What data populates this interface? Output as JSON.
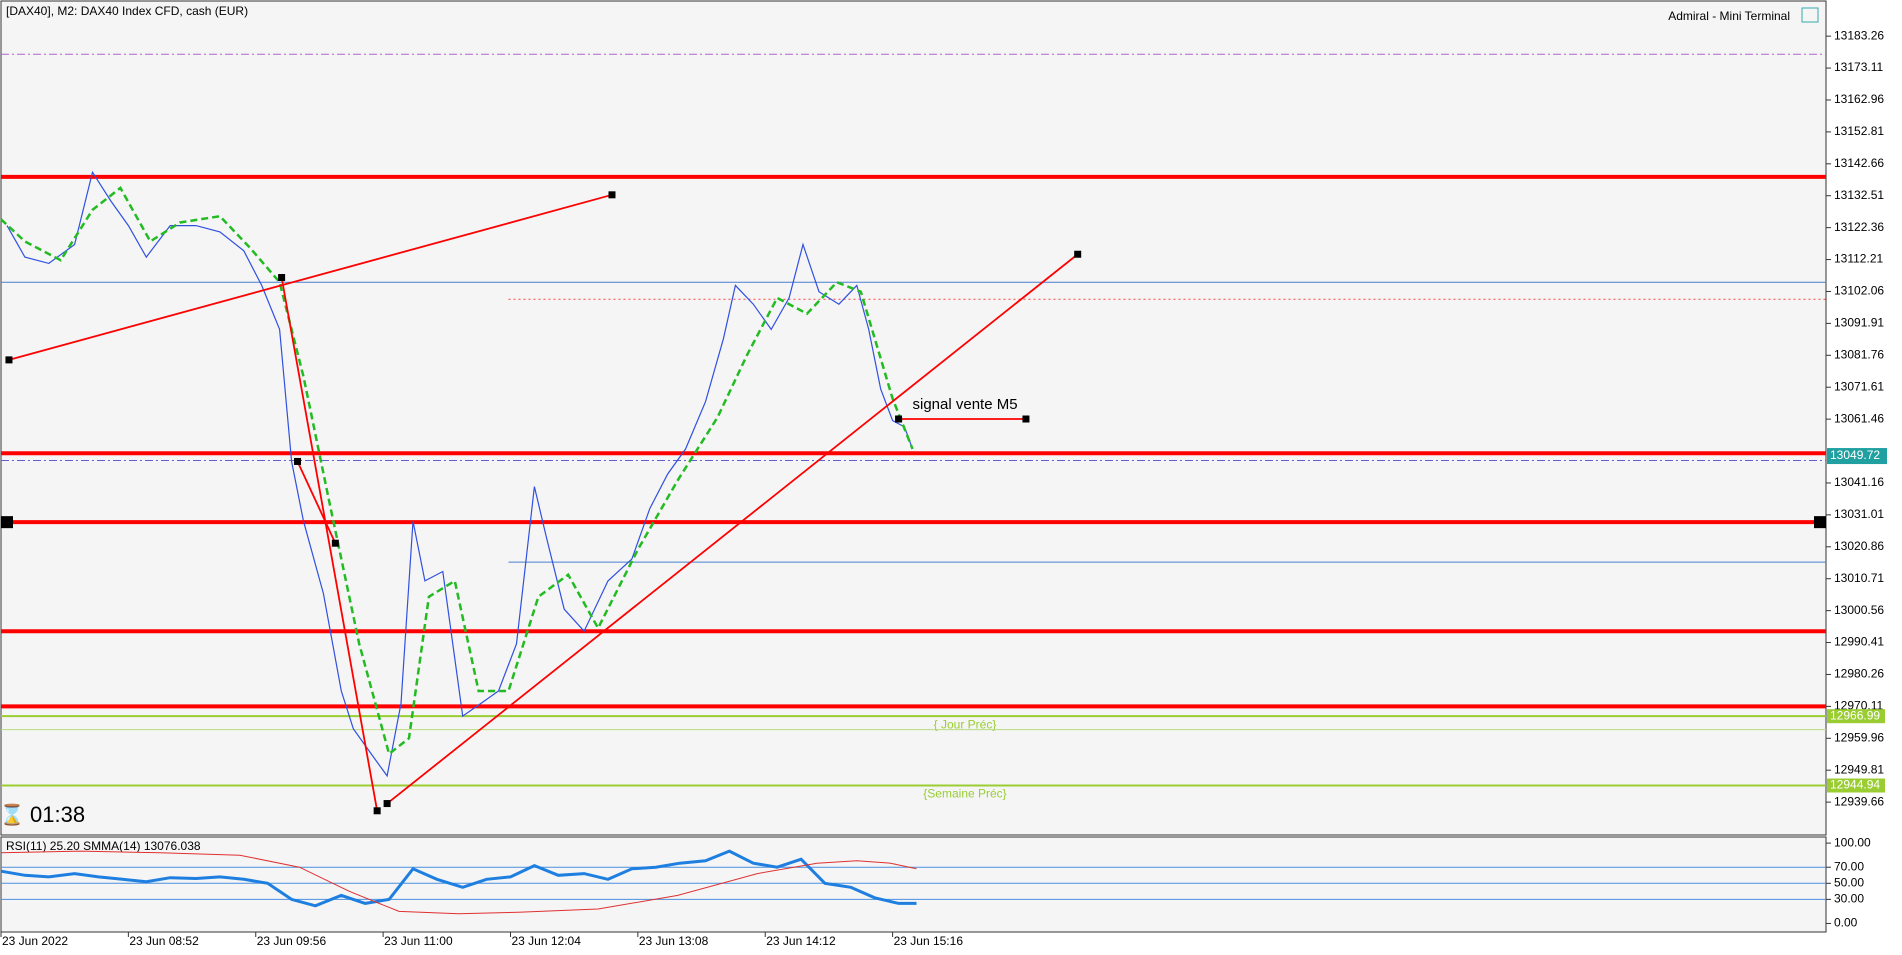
{
  "chart_data": [
    {
      "type": "line",
      "title": "[DAX40], M2:  DAX40 Index CFD, cash (EUR)",
      "terminal": "Admiral - Mini Terminal",
      "timer": "01:38",
      "xlim": [
        0,
        917
      ],
      "xticks": [
        {
          "value": 0,
          "label": "23 Jun 2022"
        },
        {
          "value": 64,
          "label": "23 Jun 08:52"
        },
        {
          "value": 128,
          "label": "23 Jun 09:56"
        },
        {
          "value": 192,
          "label": "23 Jun 11:00"
        },
        {
          "value": 256,
          "label": "23 Jun 12:04"
        },
        {
          "value": 320,
          "label": "23 Jun 13:08"
        },
        {
          "value": 384,
          "label": "23 Jun 14:12"
        },
        {
          "value": 448,
          "label": "23 Jun 15:16"
        }
      ],
      "ylim": [
        12929.2,
        13194.44
      ],
      "yticks": [
        13183.26,
        13173.11,
        13162.96,
        13152.81,
        13142.66,
        13132.51,
        13122.36,
        13112.21,
        13102.06,
        13091.91,
        13081.76,
        13071.61,
        13061.46,
        13041.16,
        13031.01,
        13020.86,
        13010.71,
        13000.56,
        12990.41,
        12980.26,
        12970.11,
        12959.96,
        12949.81,
        12939.66
      ],
      "series": [
        {
          "color": "#3050e0",
          "x": [
            3,
            12,
            24,
            37,
            46,
            55,
            64,
            73,
            85,
            98,
            110,
            122,
            131,
            140,
            146,
            152,
            162,
            171,
            177,
            186,
            194,
            201,
            207,
            213,
            222,
            232,
            241,
            250,
            259,
            268,
            274,
            283,
            293,
            305,
            317,
            326,
            335,
            344,
            354,
            363,
            369,
            378,
            387,
            396,
            403,
            411,
            421,
            430,
            436,
            442,
            448,
            454,
            458
          ],
          "values": [
            13123,
            13113,
            13111,
            13117,
            13140,
            13131,
            13123,
            13113,
            13123,
            13123,
            13121,
            13115,
            13104,
            13090,
            13048,
            13029,
            13006,
            12975,
            12963,
            12955,
            12948,
            12971,
            13029,
            13010,
            13013,
            12967,
            12971,
            12975,
            12990,
            13040,
            13024,
            13001,
            12994,
            13010,
            13017,
            13033,
            13044,
            13052,
            13067,
            13087,
            13104,
            13098,
            13090,
            13100,
            13117,
            13102,
            13098,
            13104,
            13090,
            13071,
            13061,
            13059,
            13052
          ]
        },
        {
          "color": "#22bb22",
          "dash": true,
          "x": [
            0,
            12,
            30,
            46,
            60,
            75,
            90,
            110,
            125,
            140,
            152,
            165,
            180,
            195,
            205,
            215,
            228,
            240,
            255,
            270,
            285,
            300,
            320,
            340,
            360,
            375,
            390,
            405,
            420,
            432,
            440,
            448,
            458
          ],
          "values": [
            13125,
            13118,
            13112,
            13128,
            13135,
            13118,
            13124,
            13126,
            13116,
            13105,
            13075,
            13035,
            12990,
            12955,
            12960,
            13005,
            13010,
            12975,
            12975,
            13005,
            13012,
            12995,
            13020,
            13042,
            13062,
            13082,
            13100,
            13095,
            13105,
            13102,
            13085,
            13068,
            13052
          ]
        }
      ],
      "levels": [
        {
          "value": 13177.5,
          "color": "#b060d0",
          "width": 1,
          "style": "dashdot"
        },
        {
          "value": 13138.5,
          "color": "#ff0000",
          "width": 4
        },
        {
          "value": 13105,
          "color": "#4a7fd0",
          "width": 1
        },
        {
          "value": 13099.6,
          "color": "#ff4040",
          "width": 1,
          "style": "dot",
          "from": 255
        },
        {
          "value": 13050.6,
          "color": "#ff0000",
          "width": 4
        },
        {
          "value": 13048.3,
          "color": "#6060d0",
          "width": 1,
          "style": "dashdot"
        },
        {
          "value": 13028.7,
          "color": "#ff0000",
          "width": 4,
          "ends": true
        },
        {
          "value": 13016,
          "color": "#4a7fd0",
          "width": 1,
          "from": 255
        },
        {
          "value": 12994,
          "color": "#ff0000",
          "width": 4
        },
        {
          "value": 12970.1,
          "color": "#ff0000",
          "width": 4
        },
        {
          "value": 12966.99,
          "color": "#9acd32",
          "width": 2,
          "text": "{ Jour Préc}",
          "tag": true
        },
        {
          "value": 12962.7,
          "color": "#b8dd80",
          "width": 1
        },
        {
          "value": 12944.94,
          "color": "#9acd32",
          "width": 2,
          "text": "{Semaine Préc}",
          "tag": true
        }
      ],
      "current_price": 13049.72,
      "trendlines": [
        {
          "x": [
            4,
            307
          ],
          "values": [
            13080.3,
            13132.8
          ]
        },
        {
          "x": [
            141,
            189
          ],
          "values": [
            13106.5,
            12936.9
          ]
        },
        {
          "x": [
            149,
            168
          ],
          "values": [
            13048,
            13022
          ]
        },
        {
          "x": [
            194,
            541
          ],
          "values": [
            12939.2,
            13113.9
          ]
        },
        {
          "x": [
            451,
            515
          ],
          "values": [
            13061.5,
            13061.5
          ]
        }
      ],
      "annotation": {
        "text": "signal vente M5",
        "x": 458,
        "value": 13066
      }
    },
    {
      "type": "line",
      "label": "RSI(11) 25.20 SMMA(14) 13076.038",
      "xlim": [
        0,
        917
      ],
      "ylim": [
        -10.6,
        107.6
      ],
      "yticks": [
        {
          "value": 100,
          "label": "100.00"
        },
        {
          "value": 70,
          "label": "70.00"
        },
        {
          "value": 50,
          "label": "50.00"
        },
        {
          "value": 30,
          "label": "30.00"
        },
        {
          "value": 0,
          "label": "0.00"
        }
      ],
      "levels": [
        70,
        50,
        30
      ],
      "series": [
        {
          "color": "#1e7fe0",
          "width": 3,
          "x": [
            0,
            12,
            24,
            37,
            49,
            61,
            73,
            85,
            98,
            110,
            122,
            134,
            146,
            158,
            171,
            183,
            195,
            207,
            219,
            232,
            244,
            256,
            268,
            280,
            293,
            305,
            317,
            329,
            341,
            354,
            366,
            378,
            390,
            402,
            414,
            427,
            439,
            451,
            460
          ],
          "values": [
            65,
            60,
            58,
            62,
            58,
            55,
            52,
            57,
            56,
            58,
            55,
            50,
            30,
            22,
            35,
            25,
            30,
            68,
            55,
            45,
            55,
            58,
            72,
            60,
            62,
            55,
            68,
            70,
            75,
            78,
            90,
            75,
            70,
            80,
            50,
            45,
            32,
            25,
            25
          ]
        },
        {
          "color": "#e03030",
          "width": 1,
          "x": [
            0,
            40,
            80,
            120,
            150,
            175,
            200,
            230,
            260,
            300,
            340,
            380,
            410,
            430,
            447,
            460
          ],
          "values": [
            88,
            90,
            88,
            85,
            70,
            40,
            15,
            12,
            14,
            18,
            35,
            62,
            75,
            78,
            75,
            68
          ]
        }
      ]
    }
  ]
}
